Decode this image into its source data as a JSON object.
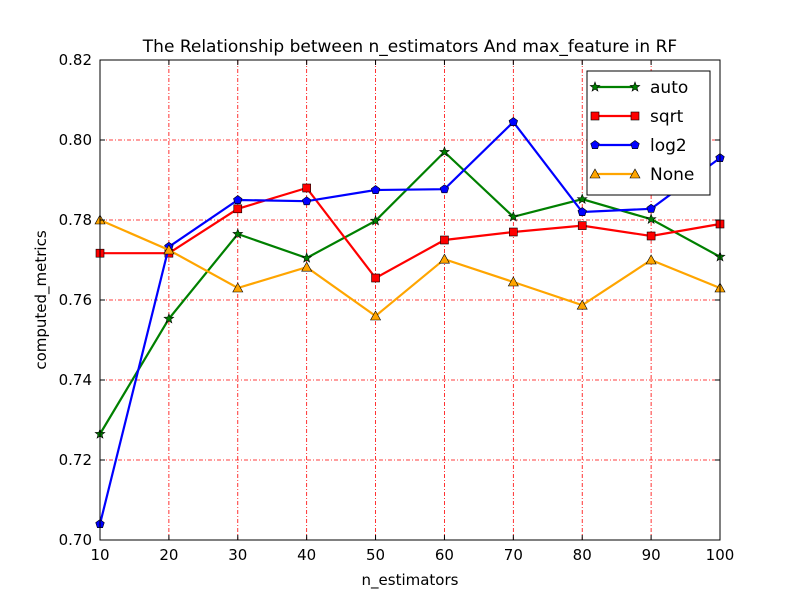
{
  "chart_data": {
    "type": "line",
    "title": "The Relationship between n_estimators And max_feature in RF",
    "xlabel": "n_estimators",
    "ylabel": "computed_metrics",
    "xlim": [
      10,
      100
    ],
    "ylim": [
      0.7,
      0.82
    ],
    "x": [
      10,
      20,
      30,
      40,
      50,
      60,
      70,
      80,
      90,
      100
    ],
    "xticks": [
      "10",
      "20",
      "30",
      "40",
      "50",
      "60",
      "70",
      "80",
      "90",
      "100"
    ],
    "yticks": [
      "0.70",
      "0.72",
      "0.74",
      "0.76",
      "0.78",
      "0.80",
      "0.82"
    ],
    "grid": true,
    "legend_position": "top-right",
    "series": [
      {
        "name": "auto",
        "color": "#008000",
        "marker": "star",
        "values": [
          0.7265,
          0.7553,
          0.7765,
          0.7705,
          0.7798,
          0.797,
          0.7808,
          0.7852,
          0.7802,
          0.7708
        ]
      },
      {
        "name": "sqrt",
        "color": "#ff0000",
        "marker": "square",
        "values": [
          0.7717,
          0.7717,
          0.7828,
          0.788,
          0.7655,
          0.775,
          0.777,
          0.7786,
          0.776,
          0.779
        ]
      },
      {
        "name": "log2",
        "color": "#0000ff",
        "marker": "pentagon",
        "values": [
          0.704,
          0.7733,
          0.785,
          0.7847,
          0.7875,
          0.7877,
          0.8045,
          0.782,
          0.7828,
          0.7955
        ]
      },
      {
        "name": "None",
        "color": "#ffa500",
        "marker": "triangle",
        "values": [
          0.78,
          0.7725,
          0.763,
          0.7682,
          0.756,
          0.7702,
          0.7645,
          0.7587,
          0.77,
          0.763
        ]
      }
    ]
  }
}
